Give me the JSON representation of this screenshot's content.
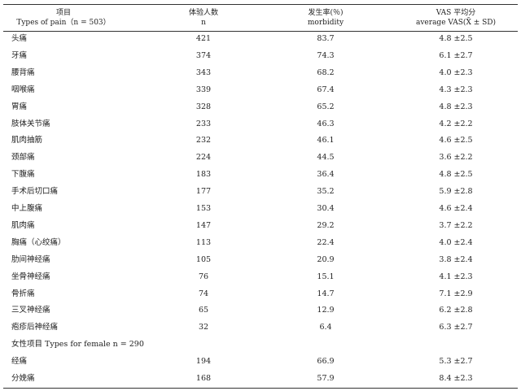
{
  "table": {
    "header": [
      {
        "zh": "项目",
        "en": "Types of pain（n = 503）"
      },
      {
        "zh": "体验人数",
        "en": "n"
      },
      {
        "zh": "发生率(％)",
        "en": "morbidity"
      },
      {
        "zh": "VAS 平均分",
        "en": "average VAS(X̄ ± SD)"
      }
    ],
    "rows": [
      [
        "头痛",
        "421",
        "83.7",
        "4.8 ±2.5"
      ],
      [
        "牙痛",
        "374",
        "74.3",
        "6.1 ±2.7"
      ],
      [
        "腰背痛",
        "343",
        "68.2",
        "4.0 ±2.3"
      ],
      [
        "咽喉痛",
        "339",
        "67.4",
        "4.3 ±2.3"
      ],
      [
        "胃痛",
        "328",
        "65.2",
        "4.8 ±2.3"
      ],
      [
        "肢体关节痛",
        "233",
        "46.3",
        "4.2 ±2.2"
      ],
      [
        "肌肉抽筋",
        "232",
        "46.1",
        "4.6 ±2.5"
      ],
      [
        "颈部痛",
        "224",
        "44.5",
        "3.6 ±2.2"
      ],
      [
        "下腹痛",
        "183",
        "36.4",
        "4.8 ±2.5"
      ],
      [
        "手术后切口痛",
        "177",
        "35.2",
        "5.9 ±2.8"
      ],
      [
        "中上腹痛",
        "153",
        "30.4",
        "4.6 ±2.4"
      ],
      [
        "肌肉痛",
        "147",
        "29.2",
        "3.7 ±2.2"
      ],
      [
        "胸痛（心绞痛）",
        "113",
        "22.4",
        "4.0 ±2.4"
      ],
      [
        "肋间神经痛",
        "105",
        "20.9",
        "3.8 ±2.4"
      ],
      [
        "坐骨神经痛",
        "76",
        "15.1",
        "4.1 ±2.3"
      ],
      [
        "骨折痛",
        "74",
        "14.7",
        "7.1 ±2.9"
      ],
      [
        "三叉神经痛",
        "65",
        "12.9",
        "6.2 ±2.8"
      ],
      [
        "疱疹后神经痛",
        "32",
        "6.4",
        "6.3 ±2.7"
      ]
    ],
    "female": {
      "title": "女性项目 Types for female n = 290",
      "rows": [
        [
          "经痛",
          "194",
          "66.9",
          "5.3 ±2.7"
        ],
        [
          "分娩痛",
          "168",
          "57.9",
          "8.4 ±2.3"
        ]
      ]
    }
  }
}
